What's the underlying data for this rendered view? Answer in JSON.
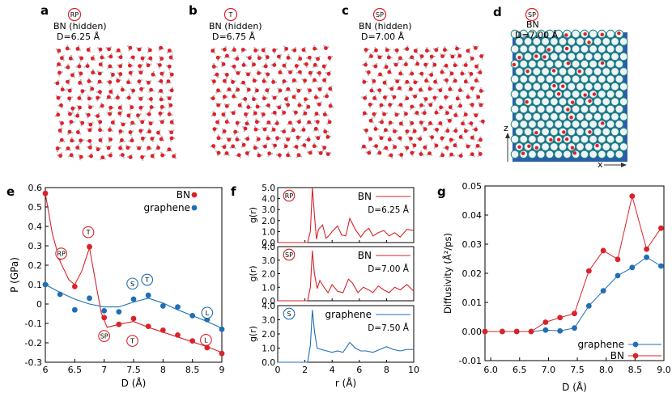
{
  "colors": {
    "bn": "#d9232a",
    "graphene": "#1f6fb4",
    "axis": "#000000",
    "water_o": "#e0202a",
    "water_h": "#dcdcdc",
    "lattice": "#1f4fa0",
    "lattice_node": "#2b9e8e"
  },
  "panels": {
    "a": {
      "letter": "a",
      "badge": "RP",
      "text1": "BN (hidden)",
      "text2": "D=6.25 Å"
    },
    "b": {
      "letter": "b",
      "badge": "T",
      "text1": "BN (hidden)",
      "text2": "D=6.75 Å"
    },
    "c": {
      "letter": "c",
      "badge": "SP",
      "text1": "BN (hidden)",
      "text2": "D=7.00 Å"
    },
    "d": {
      "letter": "d",
      "badge": "SP",
      "text1": "BN",
      "text2": "D=7.00 Å",
      "axis_z": "z",
      "axis_x": "x"
    }
  },
  "chart_data": [
    {
      "id": "e",
      "letter": "e",
      "type": "scatter",
      "xlabel": "D (Å)",
      "ylabel": "P (GPa)",
      "xlim": [
        6,
        9
      ],
      "ylim": [
        -0.3,
        0.6
      ],
      "xticks": [
        "6",
        "6.5",
        "7",
        "7.5",
        "8",
        "8.5",
        "9"
      ],
      "yticks": [
        "0.6",
        "0.5",
        "0.4",
        "0.3",
        "0.2",
        "0.1",
        "0",
        "-0.1",
        "-0.2",
        "-0.3"
      ],
      "legend": "top-right",
      "series": [
        {
          "name": "BN",
          "color_key": "bn",
          "points": [
            [
              6.0,
              0.57
            ],
            [
              6.25,
              0.24
            ],
            [
              6.5,
              0.09
            ],
            [
              6.75,
              0.295
            ],
            [
              7.0,
              -0.07
            ],
            [
              7.25,
              -0.105
            ],
            [
              7.5,
              -0.075
            ],
            [
              7.75,
              -0.115
            ],
            [
              8.0,
              -0.135
            ],
            [
              8.25,
              -0.16
            ],
            [
              8.5,
              -0.19
            ],
            [
              8.75,
              -0.225
            ],
            [
              9.0,
              -0.255
            ]
          ],
          "fit": [
            [
              6.0,
              0.57
            ],
            [
              6.12,
              0.36
            ],
            [
              6.25,
              0.22
            ],
            [
              6.4,
              0.125
            ],
            [
              6.5,
              0.1
            ],
            [
              6.62,
              0.17
            ],
            [
              6.75,
              0.29
            ],
            [
              6.85,
              0.12
            ],
            [
              6.95,
              -0.045
            ],
            [
              7.05,
              -0.12
            ],
            [
              7.25,
              -0.105
            ],
            [
              7.5,
              -0.09
            ],
            [
              7.75,
              -0.12
            ],
            [
              8.0,
              -0.145
            ],
            [
              8.25,
              -0.17
            ],
            [
              8.5,
              -0.195
            ],
            [
              8.75,
              -0.22
            ],
            [
              9.0,
              -0.25
            ]
          ]
        },
        {
          "name": "graphene",
          "color_key": "graphene",
          "points": [
            [
              6.0,
              0.1
            ],
            [
              6.25,
              0.05
            ],
            [
              6.5,
              -0.03
            ],
            [
              6.75,
              0.03
            ],
            [
              7.0,
              -0.035
            ],
            [
              7.25,
              -0.04
            ],
            [
              7.5,
              0.025
            ],
            [
              7.75,
              0.045
            ],
            [
              8.0,
              -0.01
            ],
            [
              8.25,
              -0.015
            ],
            [
              8.5,
              -0.06
            ],
            [
              8.75,
              -0.08
            ],
            [
              9.0,
              -0.13
            ]
          ],
          "fit": [
            [
              6.0,
              0.1
            ],
            [
              6.25,
              0.06
            ],
            [
              6.5,
              0.025
            ],
            [
              6.75,
              0.0
            ],
            [
              7.0,
              -0.015
            ],
            [
              7.25,
              -0.015
            ],
            [
              7.5,
              0.01
            ],
            [
              7.75,
              0.03
            ],
            [
              8.0,
              0.005
            ],
            [
              8.25,
              -0.03
            ],
            [
              8.5,
              -0.06
            ],
            [
              8.75,
              -0.09
            ],
            [
              9.0,
              -0.125
            ]
          ]
        }
      ],
      "annotations": [
        {
          "label": "RP",
          "x": 6.27,
          "y": 0.26,
          "color_key": "bn"
        },
        {
          "label": "T",
          "x": 6.73,
          "y": 0.37,
          "color_key": "bn"
        },
        {
          "label": "SP",
          "x": 7.0,
          "y": -0.165,
          "color_key": "bn"
        },
        {
          "label": "T",
          "x": 7.48,
          "y": -0.19,
          "color_key": "bn"
        },
        {
          "label": "L",
          "x": 8.73,
          "y": -0.185,
          "color_key": "bn"
        },
        {
          "label": "S",
          "x": 7.48,
          "y": 0.105,
          "color_key": "graphene"
        },
        {
          "label": "T",
          "x": 7.73,
          "y": 0.125,
          "color_key": "graphene"
        },
        {
          "label": "L",
          "x": 8.75,
          "y": -0.045,
          "color_key": "graphene"
        }
      ]
    },
    {
      "id": "f1",
      "letter": "f",
      "type": "line",
      "xlim": [
        0,
        10
      ],
      "ylim": [
        0,
        5.0
      ],
      "ylabel": "g(r)",
      "yticks": [
        "5.0",
        "4.0",
        "3.0",
        "2.0",
        "1.0",
        "0.0"
      ],
      "badge": "RP",
      "legend_name": "BN",
      "legend_note": "D=6.25 Å",
      "color_key": "bn",
      "series": [
        {
          "name": "BN",
          "x": [
            0,
            2.2,
            2.4,
            2.55,
            2.7,
            2.85,
            3.0,
            3.3,
            3.55,
            3.75,
            4.0,
            4.4,
            4.7,
            5.0,
            5.3,
            5.7,
            6.1,
            6.4,
            6.7,
            7.0,
            7.4,
            7.8,
            8.2,
            8.6,
            9.0,
            9.5,
            10
          ],
          "y": [
            0,
            0,
            1.0,
            5.0,
            2.5,
            0.3,
            1.2,
            1.6,
            0.4,
            0.6,
            1.0,
            1.5,
            0.7,
            0.6,
            2.2,
            1.2,
            0.5,
            1.0,
            1.3,
            0.6,
            0.9,
            1.1,
            0.6,
            0.9,
            0.5,
            1.2,
            1.1
          ]
        }
      ]
    },
    {
      "id": "f2",
      "type": "line",
      "xlim": [
        0,
        10
      ],
      "ylim": [
        0,
        4.0
      ],
      "ylabel": "g(r)",
      "yticks": [
        "4.0",
        "3.0",
        "2.0",
        "1.0",
        "0.0"
      ],
      "badge": "SP",
      "legend_name": "BN",
      "legend_note": "D=7.00 Å",
      "color_key": "bn",
      "series": [
        {
          "name": "BN",
          "x": [
            0,
            2.2,
            2.4,
            2.55,
            2.7,
            2.9,
            3.1,
            3.4,
            3.7,
            4.0,
            4.4,
            4.8,
            5.2,
            5.5,
            5.9,
            6.3,
            6.7,
            7.0,
            7.4,
            7.8,
            8.2,
            8.6,
            9.0,
            9.5,
            10
          ],
          "y": [
            0,
            0,
            1.0,
            3.7,
            2.0,
            0.9,
            1.5,
            1.0,
            0.6,
            1.2,
            0.7,
            0.6,
            1.6,
            1.3,
            0.6,
            1.0,
            0.8,
            0.6,
            1.1,
            0.8,
            0.6,
            1.0,
            0.8,
            1.2,
            0.7
          ]
        }
      ]
    },
    {
      "id": "f3",
      "type": "line",
      "xlim": [
        0,
        10
      ],
      "ylim": [
        0,
        4.0
      ],
      "xlabel": "r (Å)",
      "ylabel": "g(r)",
      "xticks": [
        "0",
        "2",
        "4",
        "6",
        "8",
        "10"
      ],
      "yticks": [
        "4.0",
        "3.0",
        "2.0",
        "1.0",
        "0.0"
      ],
      "badge": "S",
      "legend_name": "graphene",
      "legend_note": "D=7.50 Å",
      "color_key": "graphene",
      "series": [
        {
          "name": "graphene",
          "x": [
            0,
            2.2,
            2.4,
            2.55,
            2.7,
            2.9,
            3.2,
            3.6,
            4.0,
            4.4,
            4.8,
            5.3,
            5.7,
            6.1,
            6.5,
            7.0,
            7.5,
            8.0,
            8.5,
            9.0,
            9.5,
            10
          ],
          "y": [
            0,
            0,
            1.2,
            3.7,
            2.2,
            1.0,
            0.9,
            0.8,
            0.7,
            0.8,
            0.7,
            1.4,
            1.0,
            0.8,
            0.8,
            0.7,
            0.9,
            1.1,
            0.9,
            0.8,
            0.9,
            0.9
          ]
        }
      ]
    },
    {
      "id": "g",
      "letter": "g",
      "type": "line",
      "xlabel": "D (Å)",
      "ylabel": "Diffusivity (Å²/ps)",
      "xlim": [
        5.9,
        9.0
      ],
      "ylim": [
        -0.01,
        0.05
      ],
      "xticks": [
        "6.0",
        "6.5",
        "7.0",
        "7.5",
        "8.0",
        "8.5",
        "9.0"
      ],
      "yticks": [
        "0.05",
        "0.04",
        "0.03",
        "0.02",
        "0.01",
        "0.00",
        "-0.01"
      ],
      "legend": "bottom-right",
      "series": [
        {
          "name": "graphene",
          "color_key": "graphene",
          "x": [
            5.9,
            6.2,
            6.45,
            6.7,
            6.95,
            7.2,
            7.45,
            7.7,
            7.95,
            8.2,
            8.45,
            8.7,
            8.95
          ],
          "y": [
            0.0,
            0.0,
            0.0,
            0.0,
            0.0005,
            0.0002,
            0.0012,
            0.0088,
            0.014,
            0.0192,
            0.022,
            0.0255,
            0.0225
          ]
        },
        {
          "name": "BN",
          "color_key": "bn",
          "x": [
            5.9,
            6.2,
            6.45,
            6.7,
            6.95,
            7.2,
            7.45,
            7.7,
            7.95,
            8.2,
            8.45,
            8.7,
            8.95
          ],
          "y": [
            0.0,
            0.0,
            0.0,
            0.0,
            0.0032,
            0.0048,
            0.0062,
            0.0208,
            0.0278,
            0.0248,
            0.0465,
            0.0283,
            0.0355
          ]
        }
      ]
    }
  ]
}
